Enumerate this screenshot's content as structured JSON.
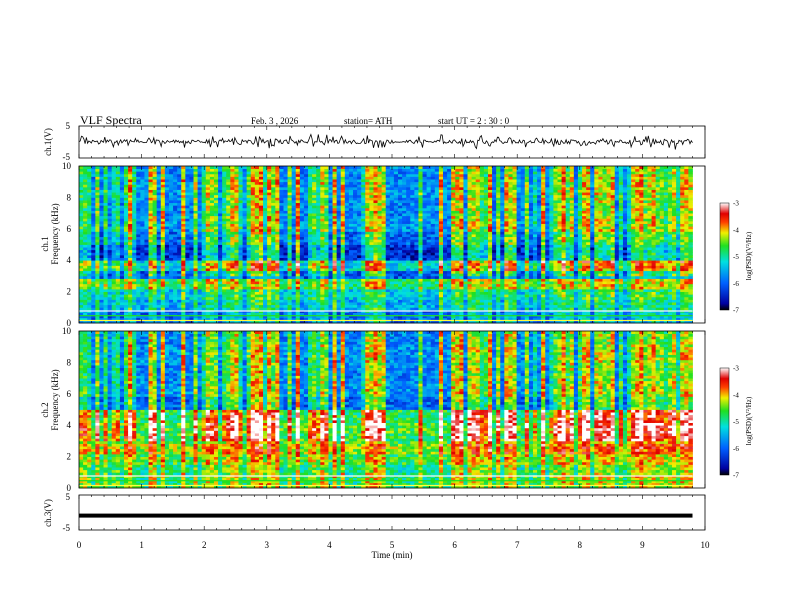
{
  "header": {
    "title": "VLF  Spectra",
    "date": "Feb. 3  , 2026",
    "station": "station= ATH",
    "start": "start  UT  =   2  : 30 : 0"
  },
  "chart_data": [
    {
      "type": "line",
      "panel": "ch1-waveform",
      "ylabel": "ch.1(V)",
      "ylim": [
        -5,
        5
      ],
      "yticks": [
        "5",
        "-5"
      ],
      "xlim": [
        0,
        10
      ],
      "trace_end_min": 9.8,
      "series_level_V": 0.1,
      "series_color": "#000000"
    },
    {
      "type": "heatmap",
      "panel": "ch1-spectrogram",
      "ylabel_top": "ch.1",
      "ylabel": "Frequency  (kHz)",
      "ylim": [
        0,
        10
      ],
      "yticks": [
        "0",
        "2",
        "4",
        "6",
        "8",
        "10"
      ],
      "xlim": [
        0,
        10
      ],
      "data_end_min": 9.8,
      "colorbar": {
        "label": "log(PSD)(V²/Hz)",
        "ticks": [
          "-3",
          "-4",
          "-5",
          "-6",
          "-7"
        ],
        "range": [
          -7,
          -3
        ]
      },
      "stripe_mean_level": [
        {
          "f_khz": 0.4,
          "level": -6.0
        },
        {
          "f_khz": 1.2,
          "level": -5.6
        },
        {
          "f_khz": 1.9,
          "level": -5.4
        },
        {
          "f_khz": 2.3,
          "level": -4.8
        },
        {
          "f_khz": 3.2,
          "level": -6.1
        },
        {
          "f_khz": 3.6,
          "level": -5.3
        },
        {
          "f_khz": 4.5,
          "level": -6.4
        },
        {
          "f_khz": 5.5,
          "level": -6.0
        },
        {
          "f_khz": 6.2,
          "level": -5.7
        },
        {
          "f_khz": 7.4,
          "level": -5.8
        },
        {
          "f_khz": 8.6,
          "level": -5.7
        },
        {
          "f_khz": 9.6,
          "level": -5.8
        }
      ]
    },
    {
      "type": "heatmap",
      "panel": "ch2-spectrogram",
      "ylabel_top": "ch.2",
      "ylabel": "Frequency  (kHz)",
      "ylim": [
        0,
        10
      ],
      "yticks": [
        "0",
        "2",
        "4",
        "6",
        "8",
        "10"
      ],
      "xlim": [
        0,
        10
      ],
      "data_end_min": 9.8,
      "colorbar": {
        "label": "log(PSD)(V²/Hz)",
        "ticks": [
          "-3",
          "-4",
          "-5",
          "-6",
          "-7"
        ],
        "range": [
          -7,
          -3
        ]
      },
      "stripe_mean_level": [
        {
          "f_khz": 0.4,
          "level": -4.9
        },
        {
          "f_khz": 1.2,
          "level": -5.0
        },
        {
          "f_khz": 1.9,
          "level": -4.7
        },
        {
          "f_khz": 2.3,
          "level": -4.4
        },
        {
          "f_khz": 3.3,
          "level": -4.7
        },
        {
          "f_khz": 3.7,
          "level": -4.6
        },
        {
          "f_khz": 4.6,
          "level": -4.8
        },
        {
          "f_khz": 5.5,
          "level": -6.0
        },
        {
          "f_khz": 6.2,
          "level": -5.7
        },
        {
          "f_khz": 7.4,
          "level": -5.8
        },
        {
          "f_khz": 8.6,
          "level": -5.7
        },
        {
          "f_khz": 9.6,
          "level": -5.8
        }
      ]
    },
    {
      "type": "line",
      "panel": "ch3-waveform",
      "ylabel": "ch.3(V)",
      "ylim": [
        -5,
        5
      ],
      "yticks": [
        "5",
        "-5"
      ],
      "xlim": [
        0,
        10
      ],
      "xticks": [
        "0",
        "1",
        "2",
        "3",
        "4",
        "5",
        "6",
        "7",
        "8",
        "9",
        "10"
      ],
      "xlabel": "Time  (min)",
      "trace_end_min": 9.8,
      "series_level_V": -0.9,
      "series_color": "#000000"
    }
  ]
}
